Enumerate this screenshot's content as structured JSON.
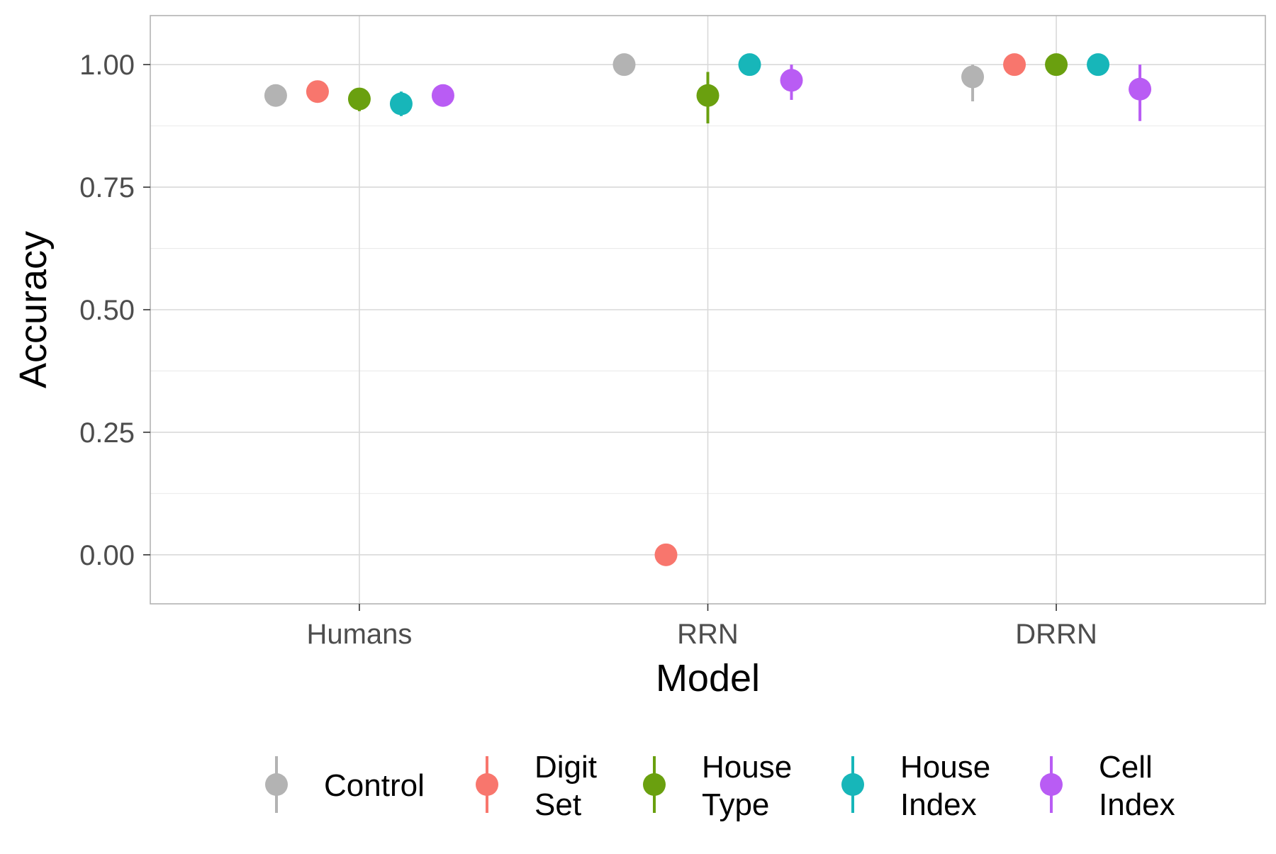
{
  "chart_data": {
    "type": "scatter",
    "title": "",
    "xlabel": "Model",
    "ylabel": "Accuracy",
    "categories": [
      "Humans",
      "RRN",
      "DRRN"
    ],
    "ylim": [
      -0.1,
      1.1
    ],
    "yticks": [
      0.0,
      0.25,
      0.5,
      0.75,
      1.0
    ],
    "ytick_labels": [
      "0.00",
      "0.25",
      "0.50",
      "0.75",
      "1.00"
    ],
    "grid": true,
    "legend_position": "bottom",
    "series": [
      {
        "name": "Control",
        "legend_lines": [
          "Control"
        ],
        "color": "#b3b3b3",
        "values": [
          0.937,
          1.0,
          0.975
        ],
        "lower": [
          0.92,
          1.0,
          0.925
        ],
        "upper": [
          0.95,
          1.0,
          1.0
        ]
      },
      {
        "name": "Digit Set",
        "legend_lines": [
          "Digit",
          "Set"
        ],
        "color": "#f8766d",
        "values": [
          0.945,
          0.0,
          1.0
        ],
        "lower": [
          0.94,
          0.0,
          1.0
        ],
        "upper": [
          0.955,
          0.0,
          1.0
        ]
      },
      {
        "name": "House Type",
        "legend_lines": [
          "House",
          "Type"
        ],
        "color": "#6aa00f",
        "values": [
          0.93,
          0.937,
          1.0
        ],
        "lower": [
          0.905,
          0.88,
          1.0
        ],
        "upper": [
          0.95,
          0.985,
          1.0
        ]
      },
      {
        "name": "House Index",
        "legend_lines": [
          "House",
          "Index"
        ],
        "color": "#17b6b9",
        "values": [
          0.92,
          1.0,
          1.0
        ],
        "lower": [
          0.895,
          1.0,
          1.0
        ],
        "upper": [
          0.945,
          1.0,
          1.0
        ]
      },
      {
        "name": "Cell Index",
        "legend_lines": [
          "Cell",
          "Index"
        ],
        "color": "#b95cf4",
        "values": [
          0.937,
          0.968,
          0.95
        ],
        "lower": [
          0.915,
          0.928,
          0.885
        ],
        "upper": [
          0.955,
          1.0,
          1.0
        ]
      }
    ]
  }
}
